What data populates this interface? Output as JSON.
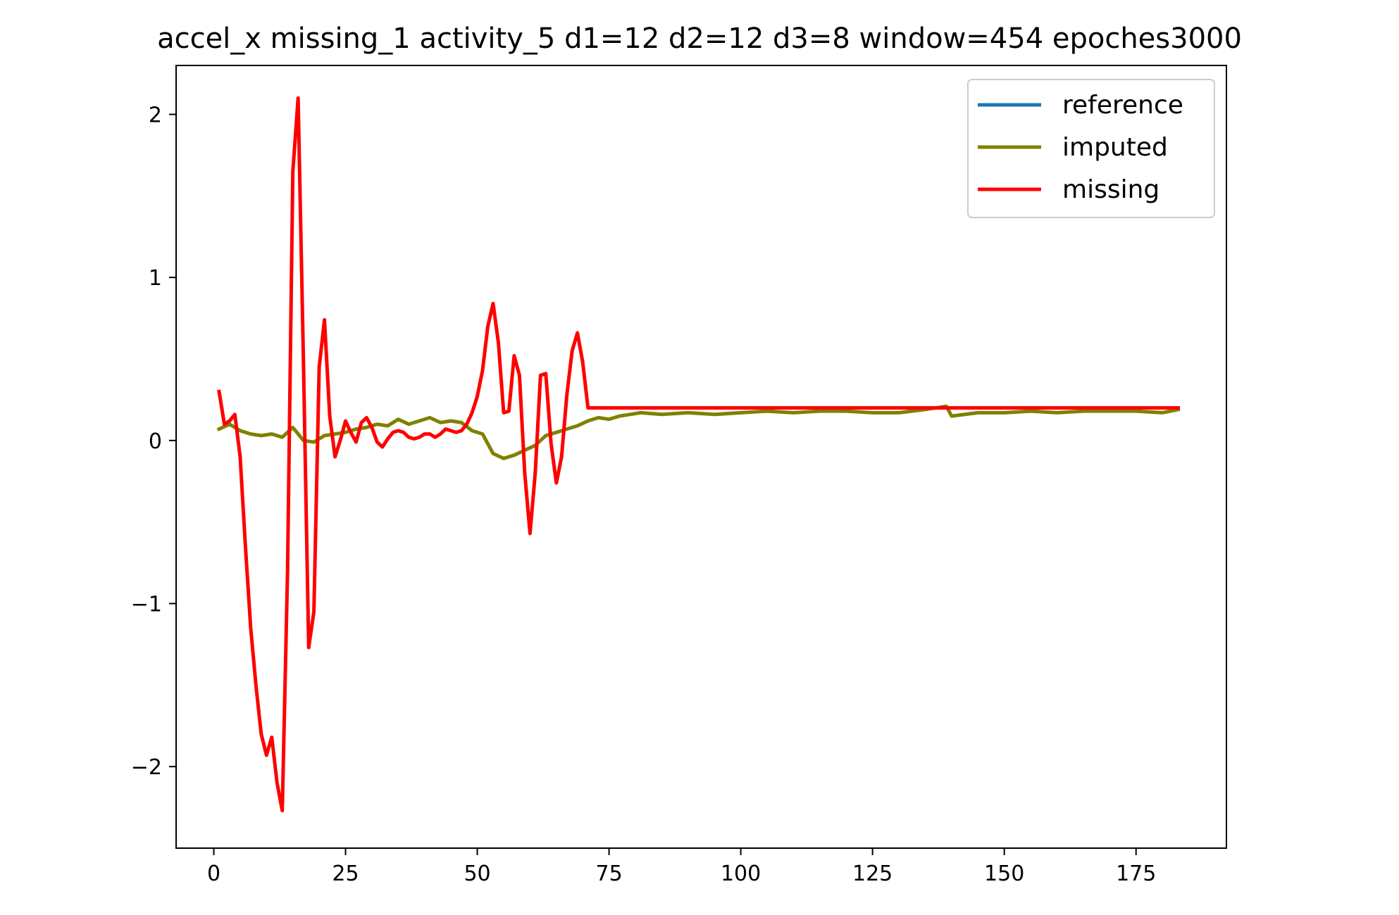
{
  "chart_data": {
    "type": "line",
    "title": "accel_x missing_1 activity_5 d1=12 d2=12 d3=8 window=454 epoches3000",
    "xlabel": "",
    "ylabel": "",
    "xlim": [
      -7.15,
      192.15
    ],
    "ylim": [
      -2.5,
      2.3
    ],
    "xticks": [
      0,
      25,
      50,
      75,
      100,
      125,
      150,
      175
    ],
    "yticks": [
      -2,
      -1,
      0,
      1,
      2
    ],
    "xtick_labels": [
      "0",
      "25",
      "50",
      "75",
      "100",
      "125",
      "150",
      "175"
    ],
    "ytick_labels": [
      "−2",
      "−1",
      "0",
      "1",
      "2"
    ],
    "grid": false,
    "legend_position": "top-right",
    "series": [
      {
        "name": "reference",
        "color": "#1f77b4",
        "points": []
      },
      {
        "name": "imputed",
        "color": "#808000",
        "points": [
          [
            1,
            0.07
          ],
          [
            3,
            0.1
          ],
          [
            5,
            0.06
          ],
          [
            7,
            0.04
          ],
          [
            9,
            0.03
          ],
          [
            11,
            0.04
          ],
          [
            13,
            0.02
          ],
          [
            15,
            0.08
          ],
          [
            17,
            0.0
          ],
          [
            19,
            -0.01
          ],
          [
            21,
            0.03
          ],
          [
            23,
            0.04
          ],
          [
            25,
            0.05
          ],
          [
            27,
            0.07
          ],
          [
            29,
            0.08
          ],
          [
            31,
            0.1
          ],
          [
            33,
            0.09
          ],
          [
            35,
            0.13
          ],
          [
            37,
            0.1
          ],
          [
            39,
            0.12
          ],
          [
            41,
            0.14
          ],
          [
            43,
            0.11
          ],
          [
            45,
            0.12
          ],
          [
            47,
            0.11
          ],
          [
            49,
            0.06
          ],
          [
            51,
            0.04
          ],
          [
            53,
            -0.08
          ],
          [
            55,
            -0.11
          ],
          [
            57,
            -0.09
          ],
          [
            59,
            -0.06
          ],
          [
            61,
            -0.03
          ],
          [
            63,
            0.03
          ],
          [
            65,
            0.05
          ],
          [
            67,
            0.07
          ],
          [
            69,
            0.09
          ],
          [
            71,
            0.12
          ],
          [
            73,
            0.14
          ],
          [
            75,
            0.13
          ],
          [
            77,
            0.15
          ],
          [
            79,
            0.16
          ],
          [
            81,
            0.17
          ],
          [
            85,
            0.16
          ],
          [
            90,
            0.17
          ],
          [
            95,
            0.16
          ],
          [
            100,
            0.17
          ],
          [
            105,
            0.18
          ],
          [
            110,
            0.17
          ],
          [
            115,
            0.18
          ],
          [
            120,
            0.18
          ],
          [
            125,
            0.17
          ],
          [
            130,
            0.17
          ],
          [
            135,
            0.19
          ],
          [
            139,
            0.21
          ],
          [
            140,
            0.15
          ],
          [
            145,
            0.17
          ],
          [
            150,
            0.17
          ],
          [
            155,
            0.18
          ],
          [
            160,
            0.17
          ],
          [
            165,
            0.18
          ],
          [
            170,
            0.18
          ],
          [
            175,
            0.18
          ],
          [
            180,
            0.17
          ],
          [
            183,
            0.19
          ]
        ]
      },
      {
        "name": "missing",
        "color": "#ff0000",
        "points": [
          [
            1,
            0.3
          ],
          [
            2,
            0.1
          ],
          [
            3,
            0.12
          ],
          [
            4,
            0.16
          ],
          [
            5,
            -0.1
          ],
          [
            6,
            -0.65
          ],
          [
            7,
            -1.15
          ],
          [
            8,
            -1.5
          ],
          [
            9,
            -1.8
          ],
          [
            10,
            -1.93
          ],
          [
            11,
            -1.82
          ],
          [
            12,
            -2.1
          ],
          [
            13,
            -2.27
          ],
          [
            14,
            -0.8
          ],
          [
            15,
            1.65
          ],
          [
            16,
            2.1
          ],
          [
            17,
            0.5
          ],
          [
            18,
            -1.27
          ],
          [
            19,
            -1.05
          ],
          [
            20,
            0.45
          ],
          [
            21,
            0.74
          ],
          [
            22,
            0.15
          ],
          [
            23,
            -0.1
          ],
          [
            24,
            0.0
          ],
          [
            25,
            0.12
          ],
          [
            26,
            0.05
          ],
          [
            27,
            -0.01
          ],
          [
            28,
            0.11
          ],
          [
            29,
            0.14
          ],
          [
            30,
            0.08
          ],
          [
            31,
            -0.01
          ],
          [
            32,
            -0.04
          ],
          [
            33,
            0.01
          ],
          [
            34,
            0.05
          ],
          [
            35,
            0.06
          ],
          [
            36,
            0.05
          ],
          [
            37,
            0.02
          ],
          [
            38,
            0.01
          ],
          [
            39,
            0.02
          ],
          [
            40,
            0.04
          ],
          [
            41,
            0.04
          ],
          [
            42,
            0.02
          ],
          [
            43,
            0.04
          ],
          [
            44,
            0.07
          ],
          [
            45,
            0.06
          ],
          [
            46,
            0.05
          ],
          [
            47,
            0.06
          ],
          [
            48,
            0.1
          ],
          [
            49,
            0.17
          ],
          [
            50,
            0.27
          ],
          [
            51,
            0.43
          ],
          [
            52,
            0.7
          ],
          [
            53,
            0.84
          ],
          [
            54,
            0.6
          ],
          [
            55,
            0.17
          ],
          [
            56,
            0.18
          ],
          [
            57,
            0.52
          ],
          [
            58,
            0.4
          ],
          [
            59,
            -0.2
          ],
          [
            60,
            -0.57
          ],
          [
            61,
            -0.2
          ],
          [
            62,
            0.4
          ],
          [
            63,
            0.41
          ],
          [
            64,
            -0.02
          ],
          [
            65,
            -0.26
          ],
          [
            66,
            -0.1
          ],
          [
            67,
            0.28
          ],
          [
            68,
            0.55
          ],
          [
            69,
            0.66
          ],
          [
            70,
            0.48
          ],
          [
            71,
            0.2
          ],
          [
            75,
            0.2
          ],
          [
            100,
            0.2
          ],
          [
            125,
            0.2
          ],
          [
            150,
            0.2
          ],
          [
            183,
            0.2
          ]
        ]
      }
    ]
  }
}
